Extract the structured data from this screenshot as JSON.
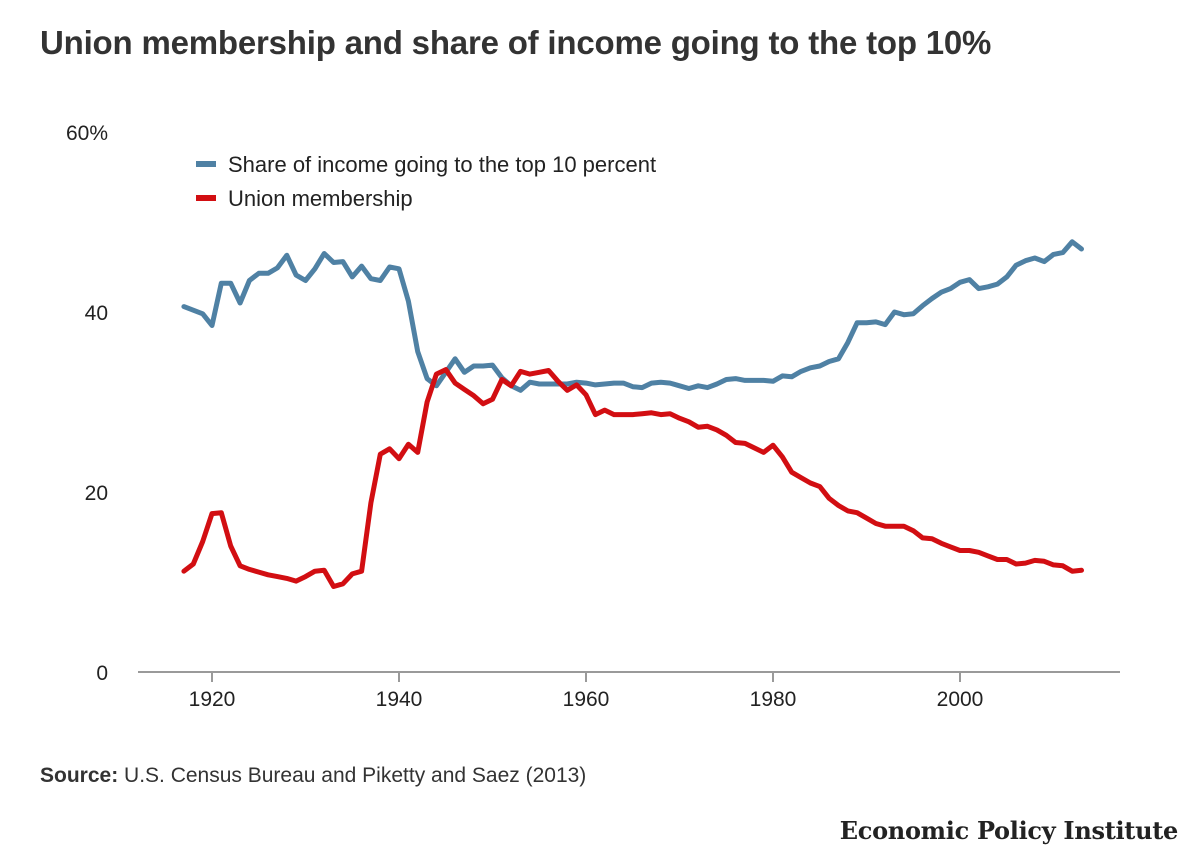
{
  "chart_data": {
    "type": "line",
    "title": "Union membership and share of income going to the top 10%",
    "xlabel": "",
    "ylabel": "",
    "xlim": [
      1913,
      2020
    ],
    "ylim": [
      0,
      60
    ],
    "x_ticks": [
      1920,
      1940,
      1960,
      1980,
      2000
    ],
    "y_ticks": [
      0,
      20,
      40,
      60
    ],
    "y_tick_labels": [
      "0",
      "20",
      "40",
      "60%"
    ],
    "legend_position": "top-left",
    "grid": false,
    "series": [
      {
        "name": "Share of income going to the top 10 percent",
        "color": "#4f81a4",
        "x": [
          1917,
          1918,
          1919,
          1920,
          1921,
          1922,
          1923,
          1924,
          1925,
          1926,
          1927,
          1928,
          1929,
          1930,
          1931,
          1932,
          1933,
          1934,
          1935,
          1936,
          1937,
          1938,
          1939,
          1940,
          1941,
          1942,
          1943,
          1944,
          1945,
          1946,
          1947,
          1948,
          1949,
          1950,
          1951,
          1952,
          1953,
          1954,
          1955,
          1956,
          1957,
          1958,
          1959,
          1960,
          1961,
          1962,
          1963,
          1964,
          1965,
          1966,
          1967,
          1968,
          1969,
          1970,
          1971,
          1972,
          1973,
          1974,
          1975,
          1976,
          1977,
          1978,
          1979,
          1980,
          1981,
          1982,
          1983,
          1984,
          1985,
          1986,
          1987,
          1988,
          1989,
          1990,
          1991,
          1992,
          1993,
          1994,
          1995,
          1996,
          1997,
          1998,
          1999,
          2000,
          2001,
          2002,
          2003,
          2004,
          2005,
          2006,
          2007,
          2008,
          2009,
          2010,
          2011,
          2012,
          2013
        ],
        "values": [
          40.6,
          40.2,
          39.8,
          38.5,
          43.2,
          43.2,
          41.0,
          43.5,
          44.3,
          44.3,
          44.9,
          46.3,
          44.1,
          43.5,
          44.8,
          46.5,
          45.5,
          45.6,
          43.9,
          45.1,
          43.7,
          43.5,
          45.0,
          44.8,
          41.2,
          35.6,
          32.6,
          31.8,
          33.3,
          34.8,
          33.3,
          34.0,
          34.0,
          34.1,
          32.7,
          31.8,
          31.3,
          32.2,
          32.0,
          32.0,
          32.0,
          32.0,
          32.2,
          32.1,
          31.9,
          32.0,
          32.1,
          32.1,
          31.7,
          31.6,
          32.1,
          32.2,
          32.1,
          31.8,
          31.5,
          31.8,
          31.6,
          32.0,
          32.5,
          32.6,
          32.4,
          32.4,
          32.4,
          32.3,
          32.9,
          32.8,
          33.4,
          33.8,
          34.0,
          34.5,
          34.8,
          36.6,
          38.8,
          38.8,
          38.9,
          38.6,
          40.0,
          39.7,
          39.8,
          40.7,
          41.5,
          42.2,
          42.6,
          43.3,
          43.6,
          42.6,
          42.8,
          43.1,
          43.9,
          45.2,
          45.7,
          46.0,
          45.6,
          46.4,
          46.6,
          47.8,
          47.0
        ]
      },
      {
        "name": "Union membership",
        "color": "#d20e12",
        "x": [
          1917,
          1918,
          1919,
          1920,
          1921,
          1922,
          1923,
          1924,
          1925,
          1926,
          1927,
          1928,
          1929,
          1930,
          1931,
          1932,
          1933,
          1934,
          1935,
          1936,
          1937,
          1938,
          1939,
          1940,
          1941,
          1942,
          1943,
          1944,
          1945,
          1946,
          1947,
          1948,
          1949,
          1950,
          1951,
          1952,
          1953,
          1954,
          1955,
          1956,
          1957,
          1958,
          1959,
          1960,
          1961,
          1962,
          1963,
          1964,
          1965,
          1966,
          1967,
          1968,
          1969,
          1970,
          1971,
          1972,
          1973,
          1974,
          1975,
          1976,
          1977,
          1978,
          1979,
          1980,
          1981,
          1982,
          1983,
          1984,
          1985,
          1986,
          1987,
          1988,
          1989,
          1990,
          1991,
          1992,
          1993,
          1994,
          1995,
          1996,
          1997,
          1998,
          1999,
          2000,
          2001,
          2002,
          2003,
          2004,
          2005,
          2006,
          2007,
          2008,
          2009,
          2010,
          2011,
          2012,
          2013
        ],
        "values": [
          11.2,
          12.0,
          14.5,
          17.6,
          17.7,
          14.0,
          11.8,
          11.4,
          11.1,
          10.8,
          10.6,
          10.4,
          10.1,
          10.6,
          11.2,
          11.3,
          9.5,
          9.8,
          10.9,
          11.2,
          18.8,
          24.2,
          24.8,
          23.7,
          25.3,
          24.4,
          30.0,
          33.1,
          33.6,
          32.1,
          31.4,
          30.7,
          29.8,
          30.3,
          32.5,
          31.8,
          33.4,
          33.1,
          33.3,
          33.5,
          32.3,
          31.3,
          31.9,
          30.8,
          28.6,
          29.1,
          28.6,
          28.6,
          28.6,
          28.7,
          28.8,
          28.6,
          28.7,
          28.2,
          27.8,
          27.2,
          27.3,
          26.9,
          26.3,
          25.5,
          25.4,
          24.9,
          24.4,
          25.2,
          23.9,
          22.2,
          21.6,
          21.0,
          20.6,
          19.3,
          18.5,
          17.9,
          17.7,
          17.1,
          16.5,
          16.2,
          16.2,
          16.2,
          15.7,
          14.9,
          14.8,
          14.3,
          13.9,
          13.5,
          13.5,
          13.3,
          12.9,
          12.5,
          12.5,
          12.0,
          12.1,
          12.4,
          12.3,
          11.9,
          11.8,
          11.2,
          11.3
        ]
      }
    ]
  },
  "source": {
    "label": "Source:",
    "text": "U.S. Census Bureau and Piketty and Saez (2013)"
  },
  "brand": "Economic Policy Institute"
}
